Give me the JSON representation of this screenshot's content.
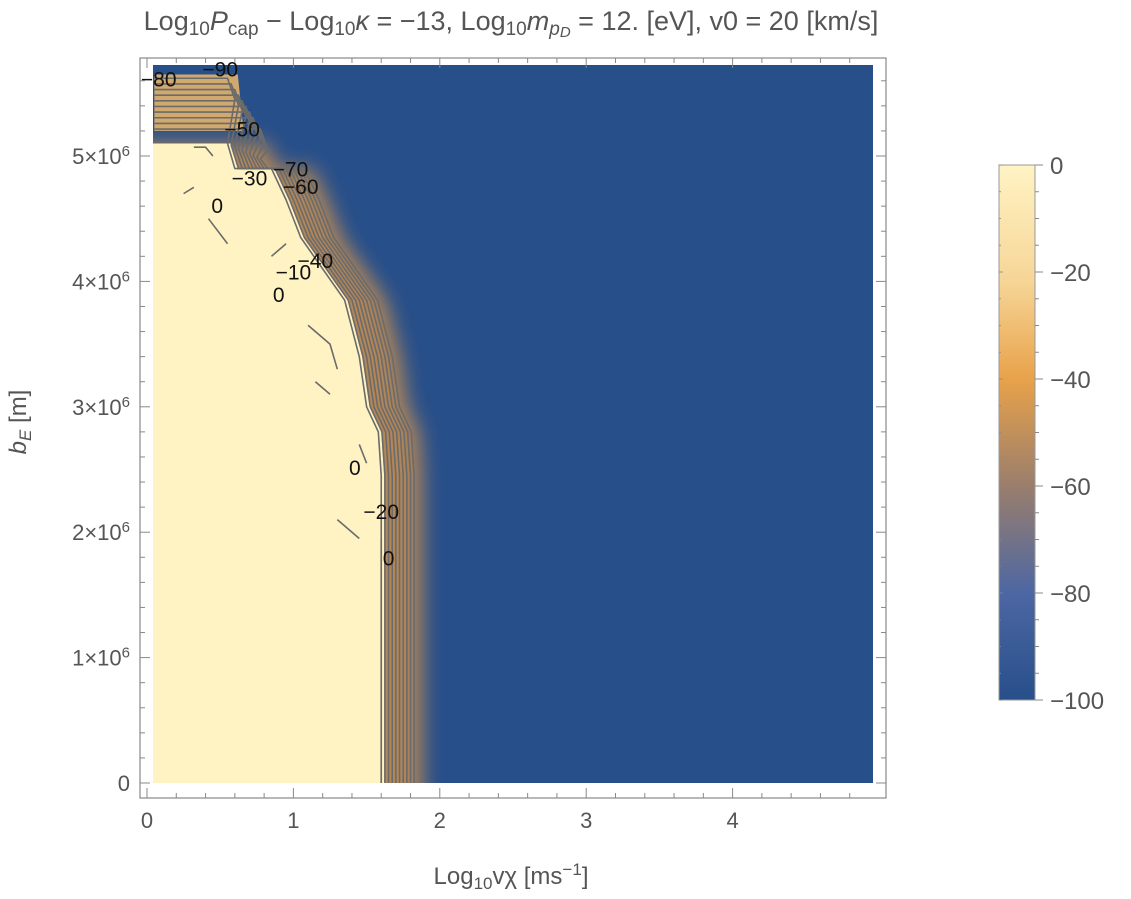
{
  "chart_data": {
    "type": "heatmap",
    "title_parts": {
      "p1": "Log",
      "p1_sub": "10",
      "p2": "P",
      "p2_sub": "cap",
      "p3": " − Log",
      "p3_sub": "10",
      "p4": "κ",
      "p5": " = −13, Log",
      "p5_sub": "10",
      "p6": "m",
      "p6_sub": "p",
      "p6_subsub": "D",
      "p7": " = 12. [eV], v0 = 20 [km/s]"
    },
    "xlabel_parts": {
      "a": "Log",
      "a_sub": "10",
      "b": "vχ [ms",
      "b_sup": "−1",
      "c": "]"
    },
    "ylabel_parts": {
      "a": "b",
      "a_sub": "E",
      "b": " [m]"
    },
    "xlim": [
      0,
      4.9
    ],
    "ylim": [
      0,
      5700000
    ],
    "x_ticks": [
      {
        "value": 0,
        "label": "0"
      },
      {
        "value": 1,
        "label": "1"
      },
      {
        "value": 2,
        "label": "2"
      },
      {
        "value": 3,
        "label": "3"
      },
      {
        "value": 4,
        "label": "4"
      }
    ],
    "y_ticks": [
      {
        "value": 0,
        "label": "0",
        "mant": "",
        "sup": ""
      },
      {
        "value": 1000000,
        "label": "",
        "mant": "1×10",
        "sup": "6"
      },
      {
        "value": 2000000,
        "label": "",
        "mant": "2×10",
        "sup": "6"
      },
      {
        "value": 3000000,
        "label": "",
        "mant": "3×10",
        "sup": "6"
      },
      {
        "value": 4000000,
        "label": "",
        "mant": "4×10",
        "sup": "6"
      },
      {
        "value": 5000000,
        "label": "",
        "mant": "5×10",
        "sup": "6"
      }
    ],
    "colorbar": {
      "range": [
        -100,
        0
      ],
      "labels": [
        {
          "value": 0,
          "label": "0"
        },
        {
          "value": -20,
          "label": "−20"
        },
        {
          "value": -40,
          "label": "−40"
        },
        {
          "value": -60,
          "label": "−60"
        },
        {
          "value": -80,
          "label": "−80"
        },
        {
          "value": -100,
          "label": "−100"
        }
      ],
      "colors": {
        "high": "#fff3c4",
        "mid_high": "#f5d28e",
        "mid": "#e8a24a",
        "mid_low": "#8f7a72",
        "low_mid": "#3d5fa0",
        "low": "#274f8a"
      }
    },
    "boundary": {
      "description_free": true,
      "points": [
        [
          0.05,
          5100000
        ],
        [
          0.55,
          5100000
        ],
        [
          0.6,
          4900000
        ],
        [
          0.85,
          4900000
        ],
        [
          0.95,
          4650000
        ],
        [
          1.05,
          4350000
        ],
        [
          1.2,
          4100000
        ],
        [
          1.35,
          3850000
        ],
        [
          1.45,
          3400000
        ],
        [
          1.5,
          3000000
        ],
        [
          1.58,
          2800000
        ],
        [
          1.6,
          2450000
        ],
        [
          1.6,
          1950000
        ],
        [
          1.6,
          0
        ]
      ],
      "level_offsets": [
        0,
        0.025,
        0.05,
        0.075,
        0.1,
        0.125,
        0.15,
        0.175,
        0.2,
        0.225
      ]
    },
    "contour_labels": [
      {
        "text": "−80",
        "x": 0.08,
        "y": 5600000
      },
      {
        "text": "−90",
        "x": 0.5,
        "y": 5680000
      },
      {
        "text": "−50",
        "x": 0.65,
        "y": 5200000
      },
      {
        "text": "−70",
        "x": 0.98,
        "y": 4880000
      },
      {
        "text": "−30",
        "x": 0.7,
        "y": 4810000
      },
      {
        "text": "−60",
        "x": 1.05,
        "y": 4740000
      },
      {
        "text": "0",
        "x": 0.48,
        "y": 4590000
      },
      {
        "text": "−40",
        "x": 1.15,
        "y": 4150000
      },
      {
        "text": "−10",
        "x": 1.0,
        "y": 4060000
      },
      {
        "text": "0",
        "x": 0.9,
        "y": 3880000
      },
      {
        "text": "0",
        "x": 1.42,
        "y": 2500000
      },
      {
        "text": "−20",
        "x": 1.6,
        "y": 2150000
      },
      {
        "text": "0",
        "x": 1.65,
        "y": 1780000
      }
    ],
    "zero_dashes": [
      [
        [
          0.32,
          5070000
        ],
        [
          0.4,
          5070000
        ],
        [
          0.45,
          5000000
        ]
      ],
      [
        [
          0.25,
          4700000
        ],
        [
          0.32,
          4750000
        ]
      ],
      [
        [
          0.42,
          4500000
        ],
        [
          0.55,
          4300000
        ]
      ],
      [
        [
          0.85,
          4200000
        ],
        [
          0.95,
          4300000
        ]
      ],
      [
        [
          1.1,
          3650000
        ],
        [
          1.25,
          3500000
        ],
        [
          1.3,
          3300000
        ]
      ],
      [
        [
          1.15,
          3200000
        ],
        [
          1.25,
          3100000
        ]
      ],
      [
        [
          1.45,
          2700000
        ],
        [
          1.5,
          2550000
        ]
      ],
      [
        [
          1.3,
          2100000
        ],
        [
          1.45,
          1950000
        ]
      ]
    ]
  }
}
